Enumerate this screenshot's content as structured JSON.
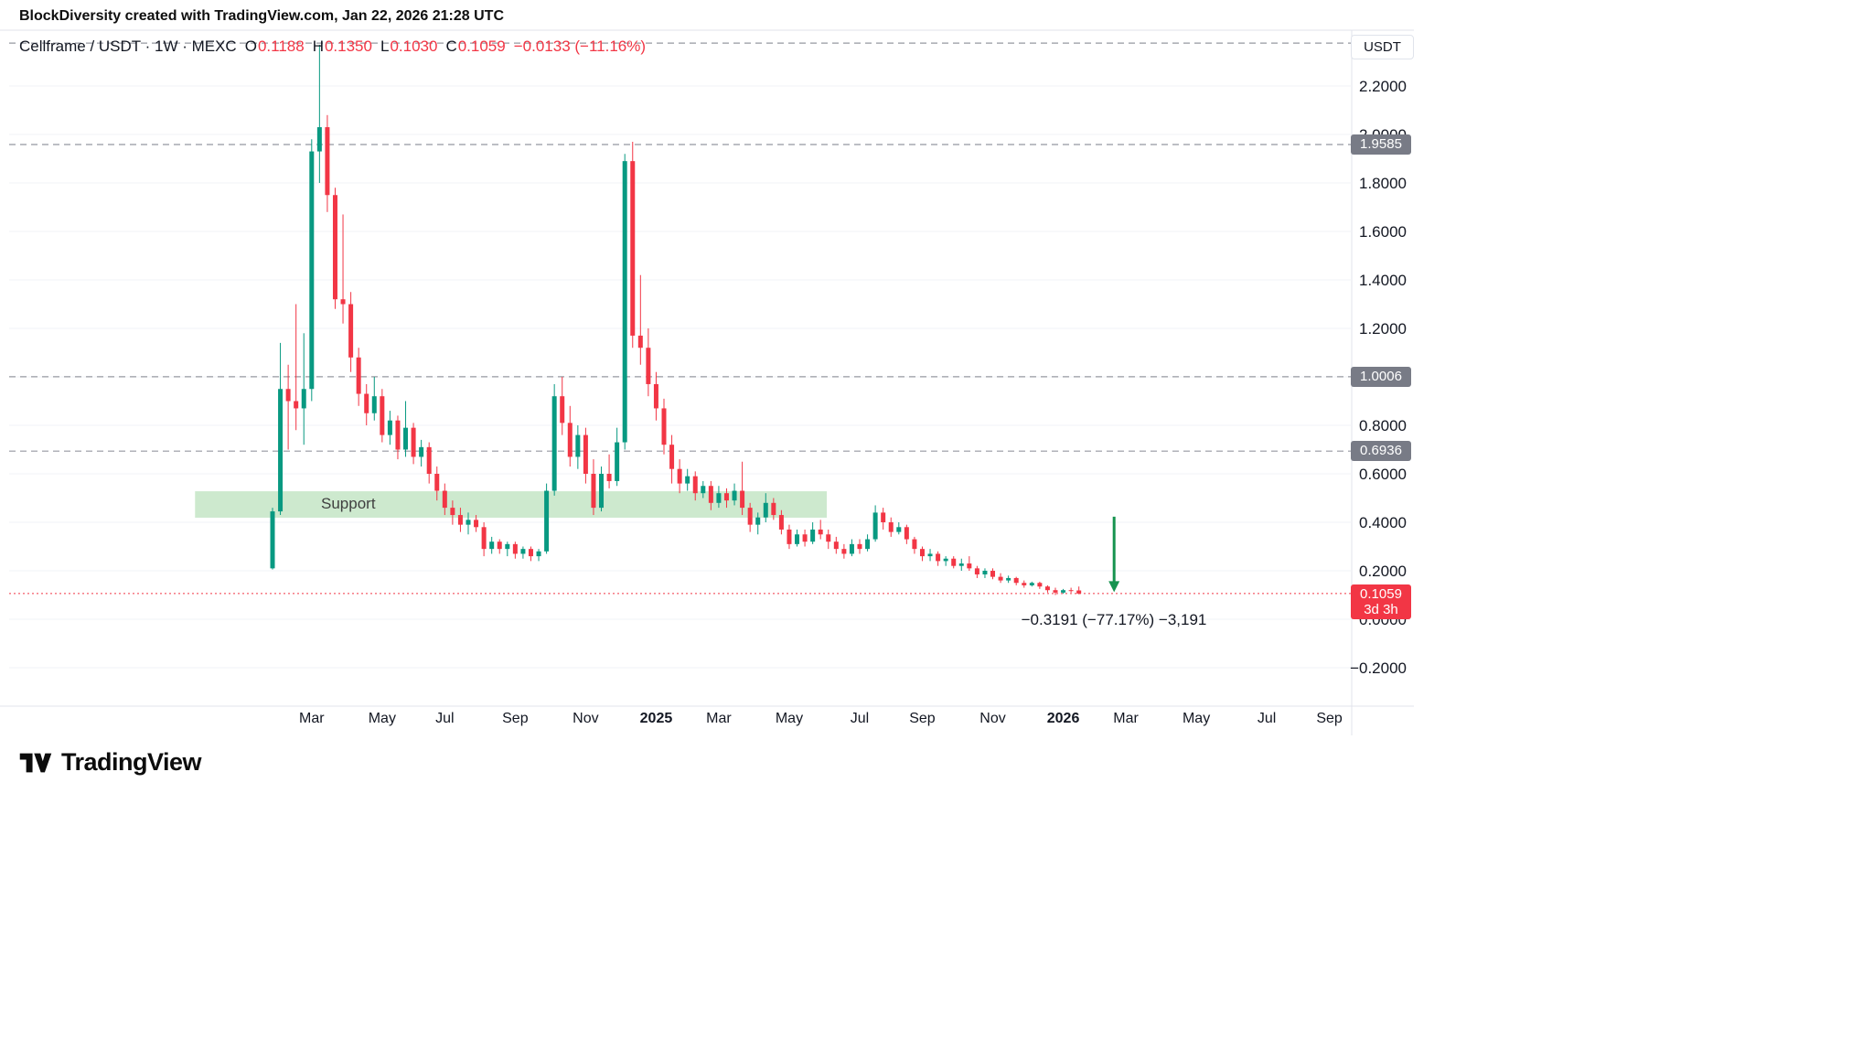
{
  "header": {
    "attribution_text": "BlockDiversity created with TradingView.com, Jan 22, 2026 21:28 UTC"
  },
  "legend": {
    "symbol": "Cellframe / USDT · 1W · MEXC",
    "open_label": "O",
    "open": "0.1188",
    "high_label": "H",
    "high": "0.1350",
    "low_label": "L",
    "low": "0.1030",
    "close_label": "C",
    "close": "0.1059",
    "change": "−0.0133 (−11.16%)"
  },
  "price_scale": {
    "unit": "USDT",
    "ticks": [
      "2.2000",
      "2.0000",
      "1.8000",
      "1.6000",
      "1.4000",
      "1.2000",
      "1.0000",
      "0.8000",
      "0.6000",
      "0.4000",
      "0.2000",
      "0.0000",
      "−0.2000"
    ],
    "top_dashed_price": 2.377,
    "levels": [
      {
        "value": "1.9585",
        "price": 1.9585,
        "type": "gray"
      },
      {
        "value": "1.0006",
        "price": 1.0006,
        "type": "gray"
      },
      {
        "value": "0.6936",
        "price": 0.6936,
        "type": "gray"
      },
      {
        "value": "0.1059",
        "price": 0.1059,
        "type": "last",
        "countdown": "3d 3h"
      }
    ]
  },
  "time_scale": {
    "ticks": [
      {
        "label": "Mar",
        "index": 5
      },
      {
        "label": "May",
        "index": 14
      },
      {
        "label": "Jul",
        "index": 22
      },
      {
        "label": "Sep",
        "index": 31
      },
      {
        "label": "Nov",
        "index": 40
      },
      {
        "label": "2025",
        "index": 49
      },
      {
        "label": "Mar",
        "index": 57
      },
      {
        "label": "May",
        "index": 66
      },
      {
        "label": "Jul",
        "index": 75
      },
      {
        "label": "Sep",
        "index": 83
      },
      {
        "label": "Nov",
        "index": 92
      },
      {
        "label": "2026",
        "index": 101
      },
      {
        "label": "Mar",
        "index": 109
      },
      {
        "label": "May",
        "index": 118
      },
      {
        "label": "Jul",
        "index": 127
      },
      {
        "label": "Sep",
        "index": 135
      }
    ]
  },
  "annotations": {
    "support_zone": {
      "label": "Support",
      "price_top": 0.528,
      "price_bottom": 0.419,
      "start_index": -9.9,
      "end_index": 70.8
    },
    "arrow": {
      "index": 107.5,
      "from_price": 0.423,
      "to_price": 0.112
    },
    "measure_text": "−0.3191 (−77.17%) −3,191"
  },
  "colors": {
    "up": "#089981",
    "down": "#f23645",
    "level_dashed": "#9598a1",
    "badge_gray": "#787b86",
    "support_fill": "#4caf50",
    "arrow": "#16934f",
    "text": "#131722"
  },
  "chart_data": {
    "type": "candlestick",
    "title": "Cellframe / USDT",
    "timeframe": "1W",
    "exchange": "MEXC",
    "ylabel": "USDT",
    "ylim": [
      -0.2,
      2.42
    ],
    "grid": "faint-horizontal",
    "candles": [
      {
        "t": "2024-01-29",
        "o": 0.21,
        "h": 0.46,
        "l": 0.205,
        "c": 0.445
      },
      {
        "t": "2024-02-05",
        "o": 0.445,
        "h": 1.14,
        "l": 0.43,
        "c": 0.95
      },
      {
        "t": "2024-02-12",
        "o": 0.95,
        "h": 1.05,
        "l": 0.7,
        "c": 0.9
      },
      {
        "t": "2024-02-19",
        "o": 0.9,
        "h": 1.3,
        "l": 0.78,
        "c": 0.87
      },
      {
        "t": "2024-02-26",
        "o": 0.87,
        "h": 1.18,
        "l": 0.72,
        "c": 0.95
      },
      {
        "t": "2024-03-04",
        "o": 0.95,
        "h": 1.98,
        "l": 0.9,
        "c": 1.93
      },
      {
        "t": "2024-03-11",
        "o": 1.93,
        "h": 2.37,
        "l": 1.8,
        "c": 2.03
      },
      {
        "t": "2024-03-18",
        "o": 2.03,
        "h": 2.08,
        "l": 1.68,
        "c": 1.75
      },
      {
        "t": "2024-03-25",
        "o": 1.75,
        "h": 1.78,
        "l": 1.28,
        "c": 1.32
      },
      {
        "t": "2024-04-01",
        "o": 1.32,
        "h": 1.67,
        "l": 1.22,
        "c": 1.3
      },
      {
        "t": "2024-04-08",
        "o": 1.3,
        "h": 1.35,
        "l": 1.02,
        "c": 1.08
      },
      {
        "t": "2024-04-15",
        "o": 1.08,
        "h": 1.12,
        "l": 0.88,
        "c": 0.93
      },
      {
        "t": "2024-04-22",
        "o": 0.93,
        "h": 0.97,
        "l": 0.8,
        "c": 0.85
      },
      {
        "t": "2024-04-29",
        "o": 0.85,
        "h": 1.0,
        "l": 0.82,
        "c": 0.92
      },
      {
        "t": "2024-05-06",
        "o": 0.92,
        "h": 0.95,
        "l": 0.73,
        "c": 0.76
      },
      {
        "t": "2024-05-13",
        "o": 0.76,
        "h": 0.86,
        "l": 0.72,
        "c": 0.82
      },
      {
        "t": "2024-05-20",
        "o": 0.82,
        "h": 0.84,
        "l": 0.66,
        "c": 0.7
      },
      {
        "t": "2024-05-27",
        "o": 0.7,
        "h": 0.9,
        "l": 0.67,
        "c": 0.79
      },
      {
        "t": "2024-06-03",
        "o": 0.79,
        "h": 0.81,
        "l": 0.64,
        "c": 0.67
      },
      {
        "t": "2024-06-10",
        "o": 0.67,
        "h": 0.74,
        "l": 0.63,
        "c": 0.71
      },
      {
        "t": "2024-06-17",
        "o": 0.71,
        "h": 0.73,
        "l": 0.56,
        "c": 0.6
      },
      {
        "t": "2024-06-24",
        "o": 0.6,
        "h": 0.63,
        "l": 0.49,
        "c": 0.53
      },
      {
        "t": "2024-07-01",
        "o": 0.53,
        "h": 0.56,
        "l": 0.43,
        "c": 0.46
      },
      {
        "t": "2024-07-08",
        "o": 0.46,
        "h": 0.49,
        "l": 0.39,
        "c": 0.43
      },
      {
        "t": "2024-07-15",
        "o": 0.43,
        "h": 0.46,
        "l": 0.36,
        "c": 0.39
      },
      {
        "t": "2024-07-22",
        "o": 0.39,
        "h": 0.44,
        "l": 0.35,
        "c": 0.41
      },
      {
        "t": "2024-07-29",
        "o": 0.41,
        "h": 0.43,
        "l": 0.36,
        "c": 0.38
      },
      {
        "t": "2024-08-05",
        "o": 0.38,
        "h": 0.4,
        "l": 0.26,
        "c": 0.29
      },
      {
        "t": "2024-08-12",
        "o": 0.29,
        "h": 0.34,
        "l": 0.27,
        "c": 0.32
      },
      {
        "t": "2024-08-19",
        "o": 0.32,
        "h": 0.33,
        "l": 0.27,
        "c": 0.29
      },
      {
        "t": "2024-08-26",
        "o": 0.29,
        "h": 0.32,
        "l": 0.26,
        "c": 0.31
      },
      {
        "t": "2024-09-02",
        "o": 0.31,
        "h": 0.32,
        "l": 0.25,
        "c": 0.27
      },
      {
        "t": "2024-09-09",
        "o": 0.27,
        "h": 0.3,
        "l": 0.25,
        "c": 0.29
      },
      {
        "t": "2024-09-16",
        "o": 0.29,
        "h": 0.3,
        "l": 0.24,
        "c": 0.26
      },
      {
        "t": "2024-09-23",
        "o": 0.26,
        "h": 0.29,
        "l": 0.24,
        "c": 0.28
      },
      {
        "t": "2024-09-30",
        "o": 0.28,
        "h": 0.56,
        "l": 0.27,
        "c": 0.53
      },
      {
        "t": "2024-10-07",
        "o": 0.53,
        "h": 0.97,
        "l": 0.51,
        "c": 0.92
      },
      {
        "t": "2024-10-14",
        "o": 0.92,
        "h": 1.0,
        "l": 0.76,
        "c": 0.81
      },
      {
        "t": "2024-10-21",
        "o": 0.81,
        "h": 0.88,
        "l": 0.63,
        "c": 0.67
      },
      {
        "t": "2024-10-28",
        "o": 0.67,
        "h": 0.8,
        "l": 0.62,
        "c": 0.76
      },
      {
        "t": "2024-11-04",
        "o": 0.76,
        "h": 0.79,
        "l": 0.56,
        "c": 0.6
      },
      {
        "t": "2024-11-11",
        "o": 0.6,
        "h": 0.66,
        "l": 0.43,
        "c": 0.46
      },
      {
        "t": "2024-11-18",
        "o": 0.46,
        "h": 0.63,
        "l": 0.445,
        "c": 0.6
      },
      {
        "t": "2024-11-25",
        "o": 0.6,
        "h": 0.68,
        "l": 0.54,
        "c": 0.57
      },
      {
        "t": "2024-12-02",
        "o": 0.57,
        "h": 0.79,
        "l": 0.55,
        "c": 0.73
      },
      {
        "t": "2024-12-09",
        "o": 0.73,
        "h": 1.92,
        "l": 0.7,
        "c": 1.89
      },
      {
        "t": "2024-12-16",
        "o": 1.89,
        "h": 1.97,
        "l": 1.12,
        "c": 1.17
      },
      {
        "t": "2024-12-23",
        "o": 1.17,
        "h": 1.42,
        "l": 1.05,
        "c": 1.12
      },
      {
        "t": "2024-12-30",
        "o": 1.12,
        "h": 1.2,
        "l": 0.92,
        "c": 0.97
      },
      {
        "t": "2025-01-06",
        "o": 0.97,
        "h": 1.02,
        "l": 0.82,
        "c": 0.87
      },
      {
        "t": "2025-01-13",
        "o": 0.87,
        "h": 0.91,
        "l": 0.68,
        "c": 0.72
      },
      {
        "t": "2025-01-20",
        "o": 0.72,
        "h": 0.76,
        "l": 0.56,
        "c": 0.62
      },
      {
        "t": "2025-01-27",
        "o": 0.62,
        "h": 0.66,
        "l": 0.52,
        "c": 0.56
      },
      {
        "t": "2025-02-03",
        "o": 0.56,
        "h": 0.62,
        "l": 0.53,
        "c": 0.59
      },
      {
        "t": "2025-02-10",
        "o": 0.59,
        "h": 0.61,
        "l": 0.49,
        "c": 0.52
      },
      {
        "t": "2025-02-17",
        "o": 0.52,
        "h": 0.57,
        "l": 0.5,
        "c": 0.55
      },
      {
        "t": "2025-02-24",
        "o": 0.55,
        "h": 0.57,
        "l": 0.45,
        "c": 0.48
      },
      {
        "t": "2025-03-03",
        "o": 0.48,
        "h": 0.55,
        "l": 0.46,
        "c": 0.52
      },
      {
        "t": "2025-03-10",
        "o": 0.52,
        "h": 0.54,
        "l": 0.46,
        "c": 0.49
      },
      {
        "t": "2025-03-17",
        "o": 0.49,
        "h": 0.56,
        "l": 0.47,
        "c": 0.53
      },
      {
        "t": "2025-03-24",
        "o": 0.53,
        "h": 0.65,
        "l": 0.43,
        "c": 0.46
      },
      {
        "t": "2025-03-31",
        "o": 0.46,
        "h": 0.48,
        "l": 0.36,
        "c": 0.39
      },
      {
        "t": "2025-04-07",
        "o": 0.39,
        "h": 0.44,
        "l": 0.35,
        "c": 0.42
      },
      {
        "t": "2025-04-14",
        "o": 0.42,
        "h": 0.52,
        "l": 0.4,
        "c": 0.48
      },
      {
        "t": "2025-04-21",
        "o": 0.48,
        "h": 0.5,
        "l": 0.41,
        "c": 0.43
      },
      {
        "t": "2025-04-28",
        "o": 0.43,
        "h": 0.45,
        "l": 0.35,
        "c": 0.37
      },
      {
        "t": "2025-05-05",
        "o": 0.37,
        "h": 0.39,
        "l": 0.29,
        "c": 0.31
      },
      {
        "t": "2025-05-12",
        "o": 0.31,
        "h": 0.37,
        "l": 0.3,
        "c": 0.35
      },
      {
        "t": "2025-05-19",
        "o": 0.35,
        "h": 0.37,
        "l": 0.3,
        "c": 0.32
      },
      {
        "t": "2025-05-26",
        "o": 0.32,
        "h": 0.4,
        "l": 0.31,
        "c": 0.37
      },
      {
        "t": "2025-06-02",
        "o": 0.37,
        "h": 0.41,
        "l": 0.33,
        "c": 0.35
      },
      {
        "t": "2025-06-09",
        "o": 0.35,
        "h": 0.37,
        "l": 0.29,
        "c": 0.32
      },
      {
        "t": "2025-06-16",
        "o": 0.32,
        "h": 0.34,
        "l": 0.27,
        "c": 0.29
      },
      {
        "t": "2025-06-23",
        "o": 0.29,
        "h": 0.31,
        "l": 0.25,
        "c": 0.27
      },
      {
        "t": "2025-06-30",
        "o": 0.27,
        "h": 0.33,
        "l": 0.26,
        "c": 0.31
      },
      {
        "t": "2025-07-07",
        "o": 0.31,
        "h": 0.33,
        "l": 0.27,
        "c": 0.29
      },
      {
        "t": "2025-07-14",
        "o": 0.29,
        "h": 0.35,
        "l": 0.28,
        "c": 0.33
      },
      {
        "t": "2025-07-21",
        "o": 0.33,
        "h": 0.47,
        "l": 0.32,
        "c": 0.44
      },
      {
        "t": "2025-07-28",
        "o": 0.44,
        "h": 0.46,
        "l": 0.37,
        "c": 0.4
      },
      {
        "t": "2025-08-04",
        "o": 0.4,
        "h": 0.42,
        "l": 0.34,
        "c": 0.36
      },
      {
        "t": "2025-08-11",
        "o": 0.36,
        "h": 0.4,
        "l": 0.35,
        "c": 0.38
      },
      {
        "t": "2025-08-18",
        "o": 0.38,
        "h": 0.39,
        "l": 0.31,
        "c": 0.33
      },
      {
        "t": "2025-08-25",
        "o": 0.33,
        "h": 0.34,
        "l": 0.27,
        "c": 0.29
      },
      {
        "t": "2025-09-01",
        "o": 0.29,
        "h": 0.3,
        "l": 0.24,
        "c": 0.26
      },
      {
        "t": "2025-09-08",
        "o": 0.26,
        "h": 0.29,
        "l": 0.24,
        "c": 0.27
      },
      {
        "t": "2025-09-15",
        "o": 0.27,
        "h": 0.28,
        "l": 0.22,
        "c": 0.24
      },
      {
        "t": "2025-09-22",
        "o": 0.24,
        "h": 0.26,
        "l": 0.22,
        "c": 0.25
      },
      {
        "t": "2025-09-29",
        "o": 0.25,
        "h": 0.26,
        "l": 0.21,
        "c": 0.22
      },
      {
        "t": "2025-10-06",
        "o": 0.22,
        "h": 0.25,
        "l": 0.2,
        "c": 0.23
      },
      {
        "t": "2025-10-13",
        "o": 0.23,
        "h": 0.26,
        "l": 0.2,
        "c": 0.21
      },
      {
        "t": "2025-10-20",
        "o": 0.21,
        "h": 0.22,
        "l": 0.17,
        "c": 0.185
      },
      {
        "t": "2025-10-27",
        "o": 0.185,
        "h": 0.21,
        "l": 0.17,
        "c": 0.2
      },
      {
        "t": "2025-11-03",
        "o": 0.2,
        "h": 0.21,
        "l": 0.165,
        "c": 0.175
      },
      {
        "t": "2025-11-10",
        "o": 0.175,
        "h": 0.19,
        "l": 0.15,
        "c": 0.16
      },
      {
        "t": "2025-11-17",
        "o": 0.16,
        "h": 0.18,
        "l": 0.15,
        "c": 0.17
      },
      {
        "t": "2025-11-24",
        "o": 0.17,
        "h": 0.175,
        "l": 0.14,
        "c": 0.15
      },
      {
        "t": "2025-12-01",
        "o": 0.15,
        "h": 0.16,
        "l": 0.13,
        "c": 0.14
      },
      {
        "t": "2025-12-08",
        "o": 0.14,
        "h": 0.155,
        "l": 0.135,
        "c": 0.15
      },
      {
        "t": "2025-12-15",
        "o": 0.15,
        "h": 0.155,
        "l": 0.125,
        "c": 0.135
      },
      {
        "t": "2025-12-22",
        "o": 0.135,
        "h": 0.14,
        "l": 0.11,
        "c": 0.12
      },
      {
        "t": "2025-12-29",
        "o": 0.12,
        "h": 0.13,
        "l": 0.1,
        "c": 0.11
      },
      {
        "t": "2026-01-05",
        "o": 0.11,
        "h": 0.125,
        "l": 0.105,
        "c": 0.12
      },
      {
        "t": "2026-01-12",
        "o": 0.12,
        "h": 0.13,
        "l": 0.11,
        "c": 0.119
      },
      {
        "t": "2026-01-19",
        "o": 0.1188,
        "h": 0.135,
        "l": 0.103,
        "c": 0.1059
      }
    ]
  },
  "footer": {
    "brand": "TradingView"
  }
}
